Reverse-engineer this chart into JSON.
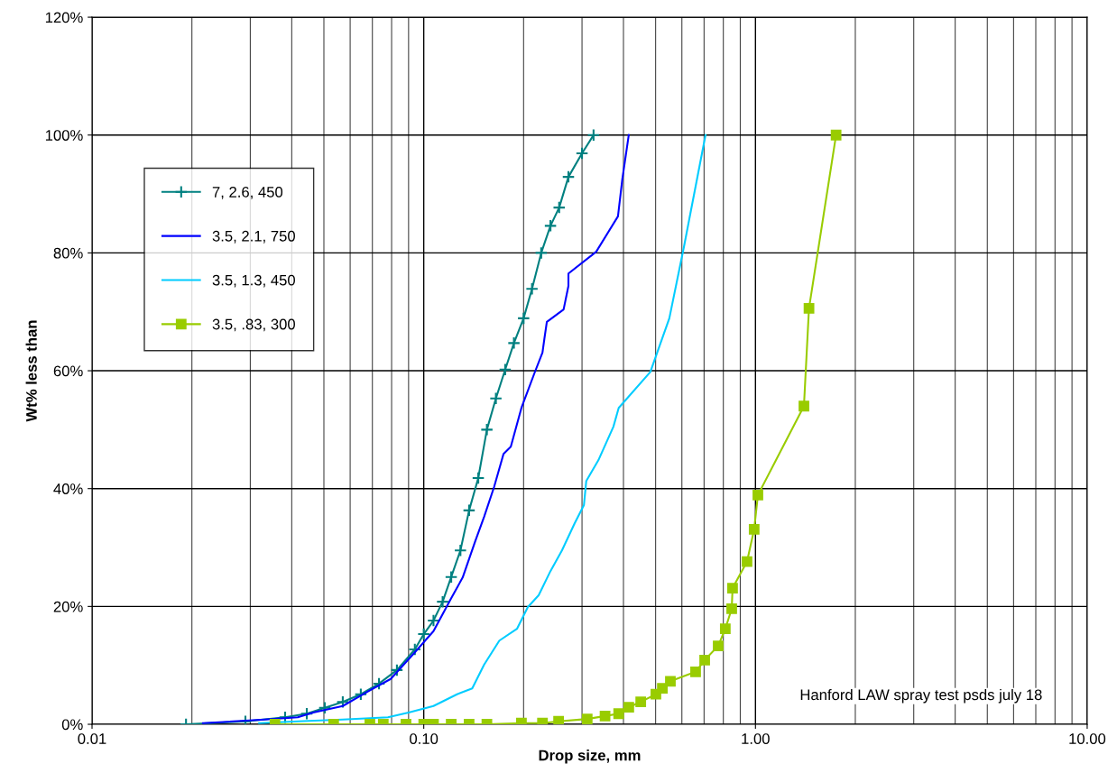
{
  "chart_data": {
    "type": "line",
    "xlabel": "Drop size, mm",
    "ylabel": "Wt% less than",
    "log": "x",
    "xlim": [
      0.01,
      10
    ],
    "xticks": [
      0.01,
      {
        "value": 0.1,
        "label": "0.10"
      },
      {
        "value": 1,
        "label": "1.00"
      },
      {
        "value": 10,
        "label": "10.00"
      }
    ],
    "ylim": [
      0,
      120
    ],
    "yticks": [
      {
        "value": 0,
        "label": "0%"
      },
      {
        "value": 20,
        "label": "20%"
      },
      {
        "value": 40,
        "label": "40%"
      },
      {
        "value": 60,
        "label": "60%"
      },
      {
        "value": 80,
        "label": "80%"
      },
      {
        "value": 100,
        "label": "100%"
      },
      {
        "value": 120,
        "label": "120%"
      }
    ],
    "grid": true,
    "legend": "top left",
    "line_style": "solid",
    "annotations": [
      "Hanford LAW spray test psds july 18"
    ],
    "series": [
      {
        "name": "7, 2.6, 450",
        "color": "#008080",
        "marker": "cross",
        "x": [
          0.0192,
          0.029,
          0.0382,
          0.0444,
          0.0503,
          0.057,
          0.0646,
          0.0733,
          0.083,
          0.094,
          0.1,
          0.107,
          0.114,
          0.121,
          0.129,
          0.137,
          0.146,
          0.155,
          0.165,
          0.176,
          0.187,
          0.2,
          0.212,
          0.226,
          0.241,
          0.256,
          0.273,
          0.3,
          0.325
        ],
        "values": [
          0,
          0.5,
          1.2,
          1.8,
          2.8,
          3.8,
          5.1,
          6.9,
          9.2,
          12.7,
          15.3,
          17.6,
          20.8,
          25,
          29.5,
          36.3,
          41.8,
          50,
          55.3,
          60.2,
          64.7,
          68.9,
          73.9,
          80,
          84.6,
          87.7,
          92.9,
          96.9,
          100
        ]
      },
      {
        "name": "3.5, 2.1, 750",
        "color": "#0000ff",
        "marker": "none",
        "x": [
          0.0216,
          0.0331,
          0.0417,
          0.0464,
          0.057,
          0.0675,
          0.0795,
          0.094,
          0.107,
          0.121,
          0.131,
          0.143,
          0.152,
          0.163,
          0.174,
          0.183,
          0.197,
          0.216,
          0.228,
          0.231,
          0.235,
          0.264,
          0.273,
          0.273,
          0.331,
          0.385,
          0.397,
          0.415
        ],
        "values": [
          0.2,
          0.8,
          1.2,
          2.0,
          3.1,
          5.5,
          7.7,
          12.2,
          15.8,
          21.4,
          24.9,
          31.1,
          35.2,
          40.3,
          45.9,
          47.1,
          53.7,
          59.7,
          63.1,
          65.4,
          68.3,
          70.4,
          74.4,
          76.5,
          80.2,
          86.2,
          92.6,
          100
        ]
      },
      {
        "name": "3.5, 1.3, 450",
        "color": "#00ccff",
        "marker": "none",
        "x": [
          0.0319,
          0.0417,
          0.057,
          0.078,
          0.09,
          0.107,
          0.126,
          0.14,
          0.152,
          0.169,
          0.191,
          0.206,
          0.222,
          0.241,
          0.261,
          0.285,
          0.304,
          0.309,
          0.336,
          0.373,
          0.387,
          0.482,
          0.55,
          0.609,
          0.707
        ],
        "values": [
          0.2,
          0.5,
          0.8,
          1.2,
          2.0,
          3.1,
          5.1,
          6.1,
          10.1,
          14.2,
          16.2,
          19.9,
          21.9,
          26.0,
          29.5,
          34.1,
          37.2,
          41.3,
          44.8,
          50.5,
          53.7,
          59.8,
          68.9,
          81.1,
          100
        ]
      },
      {
        "name": "3.5, .83, 300",
        "color": "#99cc00",
        "marker": "square",
        "x": [
          0.0356,
          0.0535,
          0.0688,
          0.0755,
          0.0884,
          0.1,
          0.107,
          0.121,
          0.137,
          0.155,
          0.197,
          0.228,
          0.255,
          0.311,
          0.352,
          0.387,
          0.415,
          0.451,
          0.501,
          0.524,
          0.554,
          0.66,
          0.703,
          0.772,
          0.811,
          0.848,
          0.853,
          0.943,
          0.991,
          1.017,
          1.4,
          1.45,
          1.75
        ],
        "values": [
          0,
          0,
          0,
          0,
          0,
          0,
          0,
          0,
          0,
          0,
          0.2,
          0.2,
          0.5,
          0.9,
          1.4,
          1.8,
          2.9,
          3.8,
          5.1,
          6.1,
          7.3,
          8.9,
          10.9,
          13.3,
          16.2,
          19.6,
          23.1,
          27.6,
          33.1,
          38.9,
          54.0,
          70.6,
          100
        ]
      }
    ]
  }
}
